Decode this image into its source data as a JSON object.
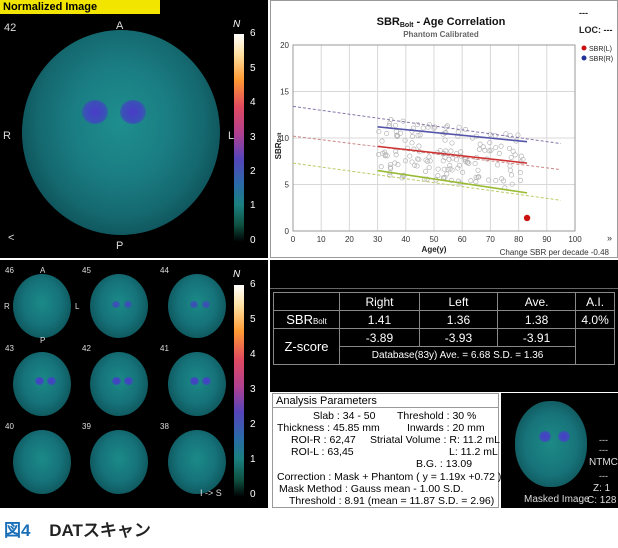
{
  "header": {
    "title": "Normalized Image"
  },
  "main_image": {
    "slice": "42",
    "orient_top": "A",
    "orient_bottom": "P",
    "orient_left": "R",
    "orient_right": "L",
    "arrow": "<",
    "scale_unit": "N",
    "scale_ticks": [
      "6",
      "5",
      "4",
      "3",
      "2",
      "1",
      "0"
    ]
  },
  "chart_data": {
    "type": "scatter",
    "title": "SBR",
    "title_sub": "Bolt",
    "title_rest": " - Age Correlation",
    "subtitle": "Phantom Calibrated",
    "xlabel": "Age(y)",
    "ylabel": "SBR",
    "ylabel_sub": "Bolt",
    "xlim": [
      0,
      100
    ],
    "ylim": [
      0,
      20
    ],
    "xticks": [
      "0",
      "10",
      "20",
      "30",
      "40",
      "50",
      "60",
      "70",
      "80",
      "90",
      "100"
    ],
    "yticks": [
      "0",
      "5",
      "10",
      "15",
      "20"
    ],
    "legend": [
      {
        "label": "SBR(L)",
        "color": "#cc1111"
      },
      {
        "label": "SBR(R)",
        "color": "#223399"
      }
    ],
    "regression_lines": [
      {
        "name": "upper",
        "color": "#5555aa",
        "x": [
          30,
          83
        ],
        "y": [
          11.2,
          9.6
        ]
      },
      {
        "name": "mean",
        "color": "#cc3333",
        "x": [
          30,
          83
        ],
        "y": [
          9.1,
          7.3
        ]
      },
      {
        "name": "lower",
        "color": "#99bb33",
        "x": [
          30,
          83
        ],
        "y": [
          6.5,
          4.1
        ]
      }
    ],
    "dashed_lines": [
      {
        "color": "#8877aa",
        "x": [
          0,
          95
        ],
        "y": [
          13.4,
          9.4
        ]
      },
      {
        "color": "#cc8888",
        "x": [
          0,
          95
        ],
        "y": [
          10.2,
          6.6
        ]
      },
      {
        "color": "#bbcc66",
        "x": [
          0,
          95
        ],
        "y": [
          7.3,
          3.3
        ]
      }
    ],
    "patient_point": {
      "x": 83,
      "y": 1.4,
      "color": "#cc1111"
    },
    "footnote": "Change SBR per decade -0.48",
    "corner_labels": [
      "LOC: ---",
      "---"
    ]
  },
  "slices": {
    "labels": [
      "46",
      "45",
      "44",
      "43",
      "42",
      "41",
      "40",
      "39",
      "38"
    ],
    "orient_top": "A",
    "orient_left": "R",
    "orient_right": "L",
    "orient_bottom": "P",
    "scale_unit": "N",
    "scale_ticks": [
      "6",
      "5",
      "4",
      "3",
      "2",
      "1",
      "0"
    ],
    "direction": "I -> S"
  },
  "sbr_table": {
    "headers": [
      "",
      "Right",
      "Left",
      "Ave.",
      "A.I."
    ],
    "row1_label": "SBR",
    "row1_sub": "Bolt",
    "row1": [
      "1.41",
      "1.36",
      "1.38",
      "4.0%"
    ],
    "row2_label": "Z-score",
    "row2": [
      "-3.89",
      "-3.93",
      "-3.91"
    ],
    "database": "Database(83y)  Ave. = 6.68  S.D. = 1.36"
  },
  "params": {
    "title": "Analysis Parameters",
    "slab": "Slab : 34 - 50",
    "threshold": "Threshold : 30 %",
    "thickness": "Thickness : 45.85 mm",
    "inwards": "Inwards : 20 mm",
    "roi_r": "ROI-R : 62,47",
    "striatal_r": "Striatal Volume : R: 11.2 mL",
    "roi_l": "ROI-L : 63,45",
    "striatal_l": "L: 11.2 mL",
    "bg": "B.G. : 13.09",
    "correction": "Correction : Mask + Phantom ( y = 1.19x +0.72 )",
    "mask": "Mask Method : Gauss mean - 1.00 S.D.",
    "thresh2": "Threshold : 8.91 (mean = 11.87  S.D. = 2.96)"
  },
  "masked": {
    "dashes1": "---",
    "dashes2": "---",
    "ntmc": "NTMC",
    "dashes3": "---",
    "z": "Z: 1",
    "label": "Masked Image",
    "c": "C: 128"
  },
  "caption": {
    "fig": "図4",
    "text": "DATスキャン",
    "fig_color": "#1a6fb8"
  }
}
